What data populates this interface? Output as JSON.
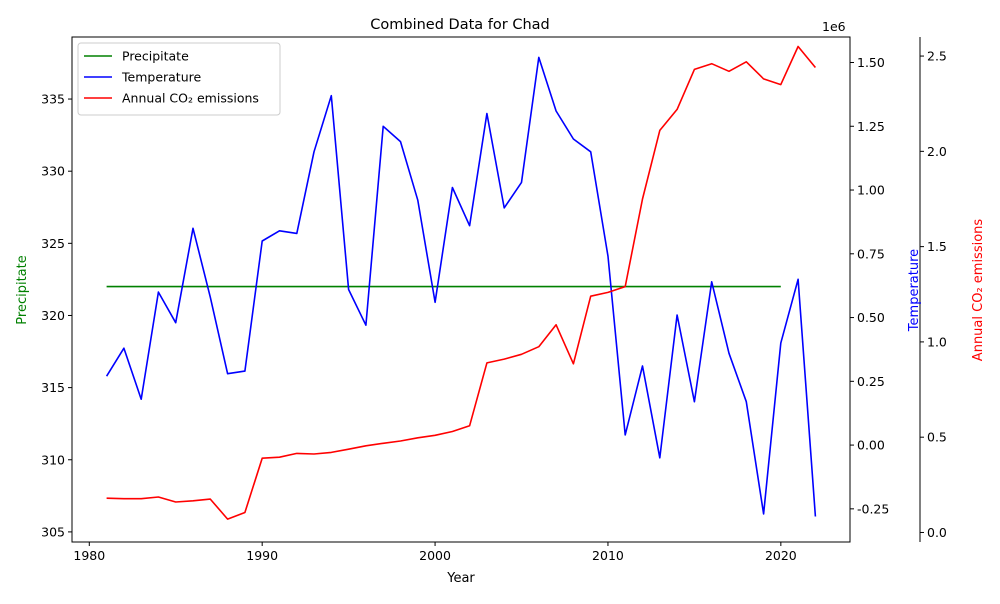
{
  "chart_data": {
    "type": "line",
    "title": "Combined Data for Chad",
    "xlabel": "Year",
    "xlim": [
      1979,
      2024
    ],
    "x_ticks": [
      1980,
      1990,
      2000,
      2010,
      2020
    ],
    "colors": {
      "precip": "#008000",
      "temp": "#0000ff",
      "co2": "#ff0000"
    },
    "axes": {
      "left": {
        "label": "Precipitate",
        "color": "#008000",
        "ylim": [
          304.3,
          339.3
        ],
        "ticks": [
          305,
          310,
          315,
          320,
          325,
          330,
          335
        ]
      },
      "right1": {
        "label": "Temperature",
        "color": "#0000ff",
        "ylim": [
          -0.38,
          1.6
        ],
        "ticks": [
          "-0.25",
          "0.00",
          "0.25",
          "0.50",
          "0.75",
          "1.00",
          "1.25",
          "1.50"
        ],
        "tick_values": [
          -0.25,
          0,
          0.25,
          0.5,
          0.75,
          1.0,
          1.25,
          1.5
        ],
        "offset_text": "1e6"
      },
      "right2": {
        "label": "Annual CO₂ emissions",
        "color": "#ff0000",
        "ylim": [
          -0.05,
          2.6
        ],
        "ticks": [
          "0.0",
          "0.5",
          "1.0",
          "1.5",
          "2.0",
          "2.5"
        ],
        "tick_values": [
          0,
          0.5,
          1.0,
          1.5,
          2.0,
          2.5
        ]
      }
    },
    "legend": {
      "placement": "upper-left",
      "entries": [
        "Precipitate",
        "Temperature",
        "Annual CO₂ emissions"
      ]
    },
    "series": [
      {
        "name": "Precipitate",
        "axis": "left",
        "x": [
          1981,
          1982,
          1983,
          1984,
          1985,
          1986,
          1987,
          1988,
          1989,
          1990,
          1991,
          1992,
          1993,
          1994,
          1995,
          1996,
          1997,
          1998,
          1999,
          2000,
          2001,
          2002,
          2003,
          2004,
          2005,
          2006,
          2007,
          2008,
          2009,
          2010,
          2011,
          2012,
          2013,
          2014,
          2015,
          2016,
          2017,
          2018,
          2019,
          2020
        ],
        "y": [
          322,
          322,
          322,
          322,
          322,
          322,
          322,
          322,
          322,
          322,
          322,
          322,
          322,
          322,
          322,
          322,
          322,
          322,
          322,
          322,
          322,
          322,
          322,
          322,
          322,
          322,
          322,
          322,
          322,
          322,
          322,
          322,
          322,
          322,
          322,
          322,
          322,
          322,
          322,
          322
        ]
      },
      {
        "name": "Temperature",
        "axis": "right1",
        "x": [
          1981,
          1982,
          1983,
          1984,
          1985,
          1986,
          1987,
          1988,
          1989,
          1990,
          1991,
          1992,
          1993,
          1994,
          1995,
          1996,
          1997,
          1998,
          1999,
          2000,
          2001,
          2002,
          2003,
          2004,
          2005,
          2006,
          2007,
          2008,
          2009,
          2010,
          2011,
          2012,
          2013,
          2014,
          2015,
          2016,
          2017,
          2018,
          2019,
          2020,
          2021,
          2022
        ],
        "y": [
          0.27,
          0.38,
          0.18,
          0.6,
          0.48,
          0.85,
          0.58,
          0.28,
          0.29,
          0.8,
          0.84,
          0.83,
          1.15,
          1.37,
          0.61,
          0.47,
          1.25,
          1.19,
          0.96,
          0.56,
          1.01,
          0.86,
          1.3,
          0.93,
          1.03,
          1.52,
          1.31,
          1.2,
          1.15,
          0.74,
          0.04,
          0.31,
          -0.05,
          0.51,
          0.17,
          0.64,
          0.36,
          0.17,
          -0.27,
          0.4,
          0.65,
          -0.28
        ]
      },
      {
        "name": "Annual CO₂ emissions",
        "axis": "right2",
        "x": [
          1981,
          1982,
          1983,
          1984,
          1985,
          1986,
          1987,
          1988,
          1989,
          1990,
          1991,
          1992,
          1993,
          1994,
          1995,
          1996,
          1997,
          1998,
          1999,
          2000,
          2001,
          2002,
          2003,
          2004,
          2005,
          2006,
          2007,
          2008,
          2009,
          2010,
          2011,
          2012,
          2013,
          2014,
          2015,
          2016,
          2017,
          2018,
          2019,
          2020,
          2021,
          2022
        ],
        "y": [
          0.18,
          0.177,
          0.177,
          0.186,
          0.16,
          0.166,
          0.175,
          0.07,
          0.105,
          0.39,
          0.395,
          0.415,
          0.412,
          0.42,
          0.437,
          0.455,
          0.468,
          0.48,
          0.497,
          0.51,
          0.53,
          0.56,
          0.89,
          0.91,
          0.935,
          0.975,
          1.09,
          0.885,
          1.24,
          1.26,
          1.29,
          1.75,
          2.11,
          2.22,
          2.43,
          2.46,
          2.42,
          2.47,
          2.38,
          2.35,
          2.55,
          2.44
        ]
      }
    ]
  }
}
